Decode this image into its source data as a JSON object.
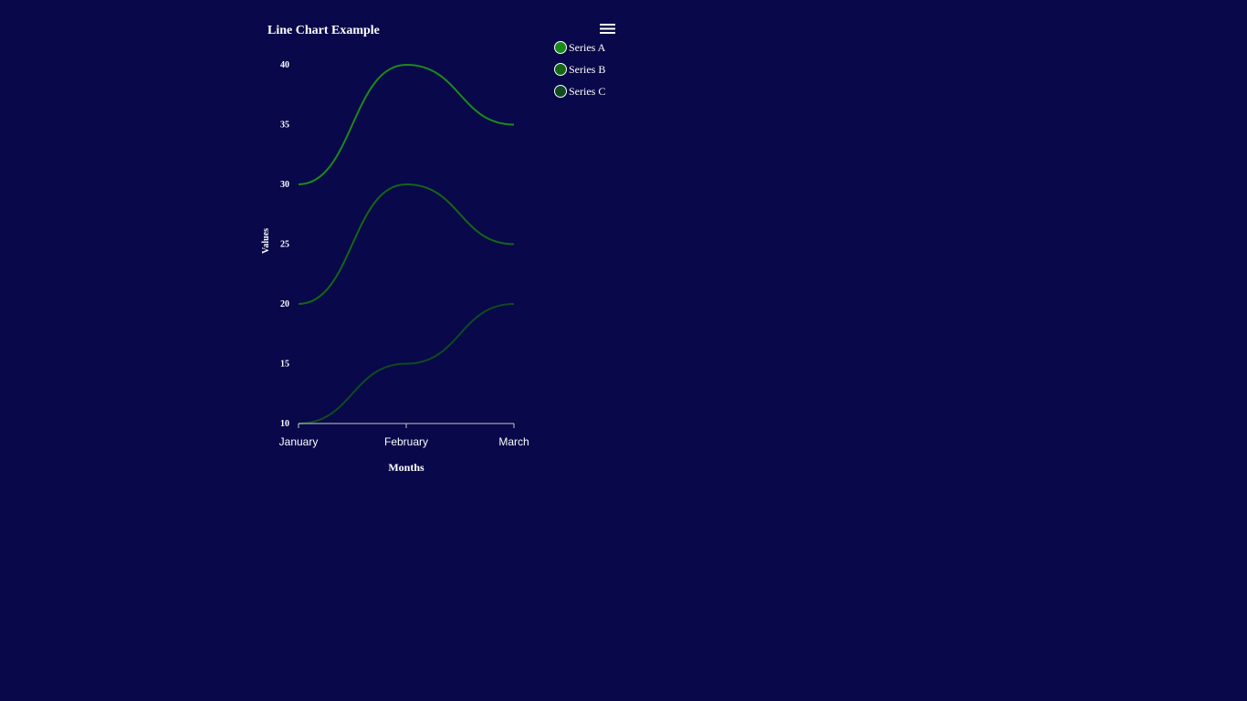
{
  "colors": {
    "background": "#08084a",
    "text": "#ffffff",
    "axis": "#c8c8c8"
  },
  "menu": {
    "icon": "hamburger-menu-icon"
  },
  "chart_data": {
    "type": "line",
    "title": "Line Chart Example",
    "xlabel": "Months",
    "ylabel": "Values",
    "categories": [
      "January",
      "February",
      "March"
    ],
    "ylim": [
      10,
      40
    ],
    "yticks": [
      10,
      15,
      20,
      25,
      30,
      35,
      40
    ],
    "grid": false,
    "legend_position": "top-right",
    "series": [
      {
        "name": "Series A",
        "values": [
          30,
          40,
          35
        ],
        "color": "#1a8a1a"
      },
      {
        "name": "Series B",
        "values": [
          20,
          30,
          25
        ],
        "color": "#146614"
      },
      {
        "name": "Series C",
        "values": [
          10,
          15,
          20
        ],
        "color": "#0f4a1e"
      }
    ]
  }
}
